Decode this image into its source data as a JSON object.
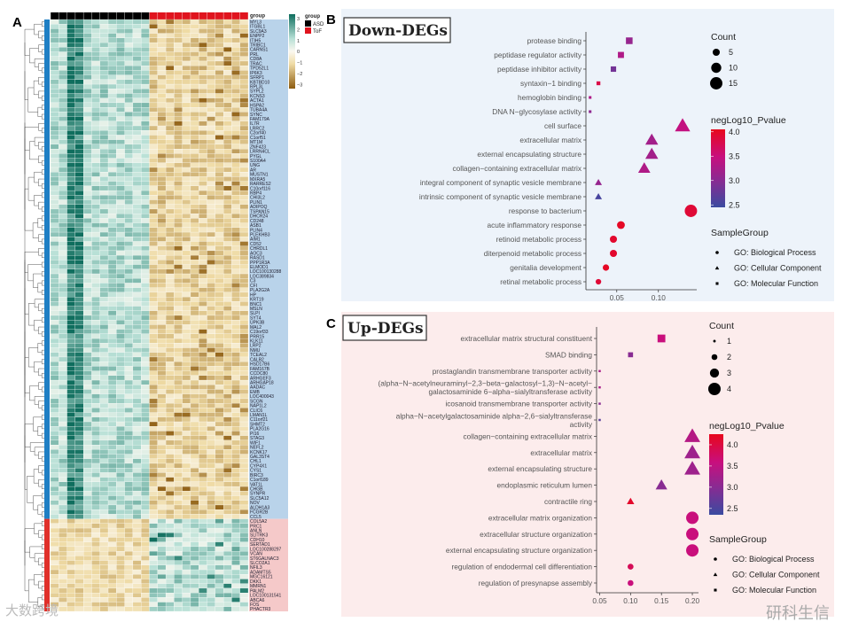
{
  "panels": {
    "a": "A",
    "b": "B",
    "c": "C"
  },
  "watermarks": {
    "left": "大数跨境",
    "right": "研科生信"
  },
  "chart_data": [
    {
      "type": "heatmap",
      "annotation_title": "group",
      "groups": [
        {
          "name": "ASD",
          "color": "#000000",
          "n_samples": 12
        },
        {
          "name": "ToF",
          "color": "#e0141e",
          "n_samples": 12
        }
      ],
      "color_scale": {
        "title": "",
        "ticks": [
          "3",
          "2",
          "1",
          "0",
          "−1",
          "−2",
          "−3"
        ],
        "high": "#0f6e5e",
        "mid": "#fbf8f0",
        "low": "#8d5c10"
      },
      "legend_title": "group",
      "gene_blocks": [
        {
          "name": "down",
          "color": "#b9d3ea",
          "bar_color": "#1f7fc4",
          "genes": [
            "MYL3",
            "ITGBL1",
            "SLC9A3",
            "ENPP2",
            "ITIH5",
            "TRIBC1",
            "CARNS1",
            "PRL",
            "CD8A",
            "TRAC",
            "TPD52L1",
            "IP6K3",
            "SFRP1",
            "KBTBD10",
            "RPL3L",
            "SYPL2",
            "KCNS3",
            "ACTA1",
            "HSPA2",
            "TUBA4A",
            "SYNC",
            "FAM179A",
            "IL7R",
            "LRRC2",
            "C2orf40",
            "C1orf51",
            "MT1M",
            "ZNF423",
            "LRRN4CL",
            "PYGL",
            "S100A4",
            "UNG",
            "AR",
            "MUSTN1",
            "MXRA5",
            "RARRES2",
            "C10orf116",
            "RBP4",
            "CHI3L2",
            "PLIN1",
            "ADIPOQ",
            "TSPAN15",
            "DHCR24",
            "CD248",
            "ASB1",
            "PLIN4",
            "PLEKHB3",
            "AIM1",
            "CD52",
            "CHRDL1",
            "AOC3",
            "RASD1",
            "PPP1R3A",
            "ELMOD1",
            "LOC100130288",
            "LOC389834",
            "C3",
            "CFI",
            "PLA2G2A",
            "HP",
            "KRT19",
            "BNC1",
            "MSLN",
            "SLPI",
            "SYT4",
            "UPK3B",
            "MAL2",
            "C19orf33",
            "PRR15",
            "KLK11",
            "LRP2",
            "NMU",
            "TCEAL2",
            "CALB2",
            "HSD17B6",
            "FAM167B",
            "CCDC80",
            "ARHGEF3",
            "ARHGAP18",
            "AADAC",
            "EMB",
            "LOC400043",
            "SCGN",
            "NAP1L2",
            "CLIC6",
            "LMAN1L",
            "C11orf21",
            "SHMT2",
            "PLA2G16",
            "PI16",
            "STAG3",
            "WIF1",
            "NEFL2",
            "KCNK17",
            "GAL3ST4",
            "CHL1",
            "CYP4X1",
            "CYS1",
            "BIRC3",
            "C1orf189",
            "VAT1L",
            "CHGB",
            "SYNPR",
            "SLC5A12",
            "NOV",
            "ALDH1A3",
            "FCGR2B",
            "CCL5"
          ]
        },
        {
          "name": "up",
          "color": "#f5c9c9",
          "bar_color": "#e0302a",
          "genes": [
            "COL5A2",
            "PRC1",
            "ANLN",
            "SLITRK3",
            "CDH10",
            "SERTAD1",
            "LOC100288297",
            "VCAN",
            "ST6GALNAC3",
            "SLCO2A1",
            "NFIL3",
            "ADAMTS5",
            "MGC16121",
            "DKK1",
            "MMRN1",
            "PALM2",
            "LOC100131541",
            "ABCA6",
            "FOS",
            "PHACTR3"
          ]
        }
      ]
    },
    {
      "type": "scatter",
      "title": "Down-DEGs",
      "xlabel": "",
      "ylabel": "",
      "xlim": [
        0.013,
        0.146
      ],
      "xticks": [
        "0.05",
        "0.10"
      ],
      "xtick_values": [
        0.05,
        0.1
      ],
      "legend": {
        "count_title": "Count",
        "count_values": [
          5,
          10,
          15
        ],
        "count_labels": [
          "5",
          "10",
          "15"
        ],
        "color_title": "negLog10_Pvalue",
        "color_range": [
          2.45,
          4.05
        ],
        "color_ticks": [
          "4.0",
          "3.5",
          "3.0",
          "2.5"
        ],
        "color_tick_values": [
          4.0,
          3.5,
          3.0,
          2.5
        ],
        "shape_title": "SampleGroup",
        "shapes": [
          {
            "key": "BP",
            "label": "GO: Biological Process"
          },
          {
            "key": "CC",
            "label": "GO: Cellular Component"
          },
          {
            "key": "MF",
            "label": "GO: Molecular Function"
          }
        ]
      },
      "terms": [
        {
          "label": [
            "protease binding"
          ],
          "x": 0.065,
          "count": 6,
          "p": 3.1,
          "group": "MF"
        },
        {
          "label": [
            "peptidase regulator activity"
          ],
          "x": 0.055,
          "count": 5,
          "p": 3.3,
          "group": "MF"
        },
        {
          "label": [
            "peptidase inhibitor activity"
          ],
          "x": 0.046,
          "count": 4,
          "p": 2.85,
          "group": "MF"
        },
        {
          "label": [
            "syntaxin−1 binding"
          ],
          "x": 0.028,
          "count": 2,
          "p": 3.8,
          "group": "MF"
        },
        {
          "label": [
            "hemoglobin binding"
          ],
          "x": 0.018,
          "count": 1,
          "p": 3.3,
          "group": "MF"
        },
        {
          "label": [
            "DNA N−glycosylase activity"
          ],
          "x": 0.018,
          "count": 1,
          "p": 3.05,
          "group": "MF"
        },
        {
          "label": [
            "cell surface"
          ],
          "x": 0.129,
          "count": 14,
          "p": 3.45,
          "group": "CC"
        },
        {
          "label": [
            "extracellular matrix"
          ],
          "x": 0.092,
          "count": 10,
          "p": 3.2,
          "group": "CC"
        },
        {
          "label": [
            "external encapsulating structure"
          ],
          "x": 0.092,
          "count": 10,
          "p": 3.2,
          "group": "CC"
        },
        {
          "label": [
            "collagen−containing extracellular matrix"
          ],
          "x": 0.083,
          "count": 9,
          "p": 3.3,
          "group": "CC"
        },
        {
          "label": [
            "integral component of synaptic vesicle membrane"
          ],
          "x": 0.028,
          "count": 3,
          "p": 3.1,
          "group": "CC"
        },
        {
          "label": [
            "intrinsic component of synaptic vesicle membrane"
          ],
          "x": 0.028,
          "count": 3,
          "p": 2.55,
          "group": "CC"
        },
        {
          "label": [
            "response to bacterium"
          ],
          "x": 0.139,
          "count": 15,
          "p": 3.9,
          "group": "BP"
        },
        {
          "label": [
            "acute inflammatory response"
          ],
          "x": 0.055,
          "count": 6,
          "p": 4.0,
          "group": "BP"
        },
        {
          "label": [
            "retinoid metabolic process"
          ],
          "x": 0.046,
          "count": 5,
          "p": 3.95,
          "group": "BP"
        },
        {
          "label": [
            "diterpenoid metabolic process"
          ],
          "x": 0.046,
          "count": 5,
          "p": 3.95,
          "group": "BP"
        },
        {
          "label": [
            "genitalia development"
          ],
          "x": 0.037,
          "count": 4,
          "p": 4.0,
          "group": "BP"
        },
        {
          "label": [
            "retinal metabolic process"
          ],
          "x": 0.028,
          "count": 3,
          "p": 3.9,
          "group": "BP"
        }
      ]
    },
    {
      "type": "scatter",
      "title": "Up-DEGs",
      "xlabel": "",
      "ylabel": "",
      "xlim": [
        0.045,
        0.21
      ],
      "xticks": [
        "0.05",
        "0.10",
        "0.15",
        "0.20"
      ],
      "xtick_values": [
        0.05,
        0.1,
        0.15,
        0.2
      ],
      "legend": {
        "count_title": "Count",
        "count_values": [
          1,
          2,
          3,
          4
        ],
        "count_labels": [
          "1",
          "2",
          "3",
          "4"
        ],
        "color_title": "negLog10_Pvalue",
        "color_range": [
          2.35,
          4.25
        ],
        "color_ticks": [
          "4.0",
          "3.5",
          "3.0",
          "2.5"
        ],
        "color_tick_values": [
          4.0,
          3.5,
          3.0,
          2.5
        ],
        "shape_title": "SampleGroup",
        "shapes": [
          {
            "key": "BP",
            "label": "GO: Biological Process"
          },
          {
            "key": "CC",
            "label": "GO: Cellular Component"
          },
          {
            "key": "MF",
            "label": "GO: Molecular Function"
          }
        ]
      },
      "terms": [
        {
          "label": [
            "extracellular matrix structural constituent"
          ],
          "x": 0.15,
          "count": 3,
          "p": 3.6,
          "group": "MF"
        },
        {
          "label": [
            "SMAD binding"
          ],
          "x": 0.1,
          "count": 2,
          "p": 3.0,
          "group": "MF"
        },
        {
          "label": [
            "prostaglandin transmembrane transporter activity"
          ],
          "x": 0.05,
          "count": 1,
          "p": 3.3,
          "group": "MF"
        },
        {
          "label": [
            "(alpha−N−acetylneuraminyl−2,3−beta−galactosyl−1,3)−N−acetyl−",
            "galactosaminide 6−alpha−sialyltransferase activity"
          ],
          "x": 0.05,
          "count": 1,
          "p": 3.3,
          "group": "MF"
        },
        {
          "label": [
            "icosanoid transmembrane transporter activity"
          ],
          "x": 0.05,
          "count": 1,
          "p": 3.0,
          "group": "MF"
        },
        {
          "label": [
            "alpha−N−acetylgalactosaminide alpha−2,6−sialyltransferase",
            "activity"
          ],
          "x": 0.05,
          "count": 1,
          "p": 2.6,
          "group": "MF"
        },
        {
          "label": [
            "collagen−containing extracellular matrix"
          ],
          "x": 0.2,
          "count": 4,
          "p": 3.4,
          "group": "CC"
        },
        {
          "label": [
            "extracellular matrix"
          ],
          "x": 0.2,
          "count": 4,
          "p": 3.2,
          "group": "CC"
        },
        {
          "label": [
            "external encapsulating structure"
          ],
          "x": 0.2,
          "count": 4,
          "p": 3.2,
          "group": "CC"
        },
        {
          "label": [
            "endoplasmic reticulum lumen"
          ],
          "x": 0.15,
          "count": 3,
          "p": 3.0,
          "group": "CC"
        },
        {
          "label": [
            "contractile ring"
          ],
          "x": 0.1,
          "count": 2,
          "p": 4.15,
          "group": "CC"
        },
        {
          "label": [
            "extracellular matrix organization"
          ],
          "x": 0.2,
          "count": 4,
          "p": 3.6,
          "group": "BP"
        },
        {
          "label": [
            "extracellular structure organization"
          ],
          "x": 0.2,
          "count": 4,
          "p": 3.6,
          "group": "BP"
        },
        {
          "label": [
            "external encapsulating structure organization"
          ],
          "x": 0.2,
          "count": 4,
          "p": 3.6,
          "group": "BP"
        },
        {
          "label": [
            "regulation of endodermal cell differentiation"
          ],
          "x": 0.1,
          "count": 2,
          "p": 3.85,
          "group": "BP"
        },
        {
          "label": [
            "regulation of presynapse assembly"
          ],
          "x": 0.1,
          "count": 2,
          "p": 3.6,
          "group": "BP"
        }
      ]
    }
  ]
}
